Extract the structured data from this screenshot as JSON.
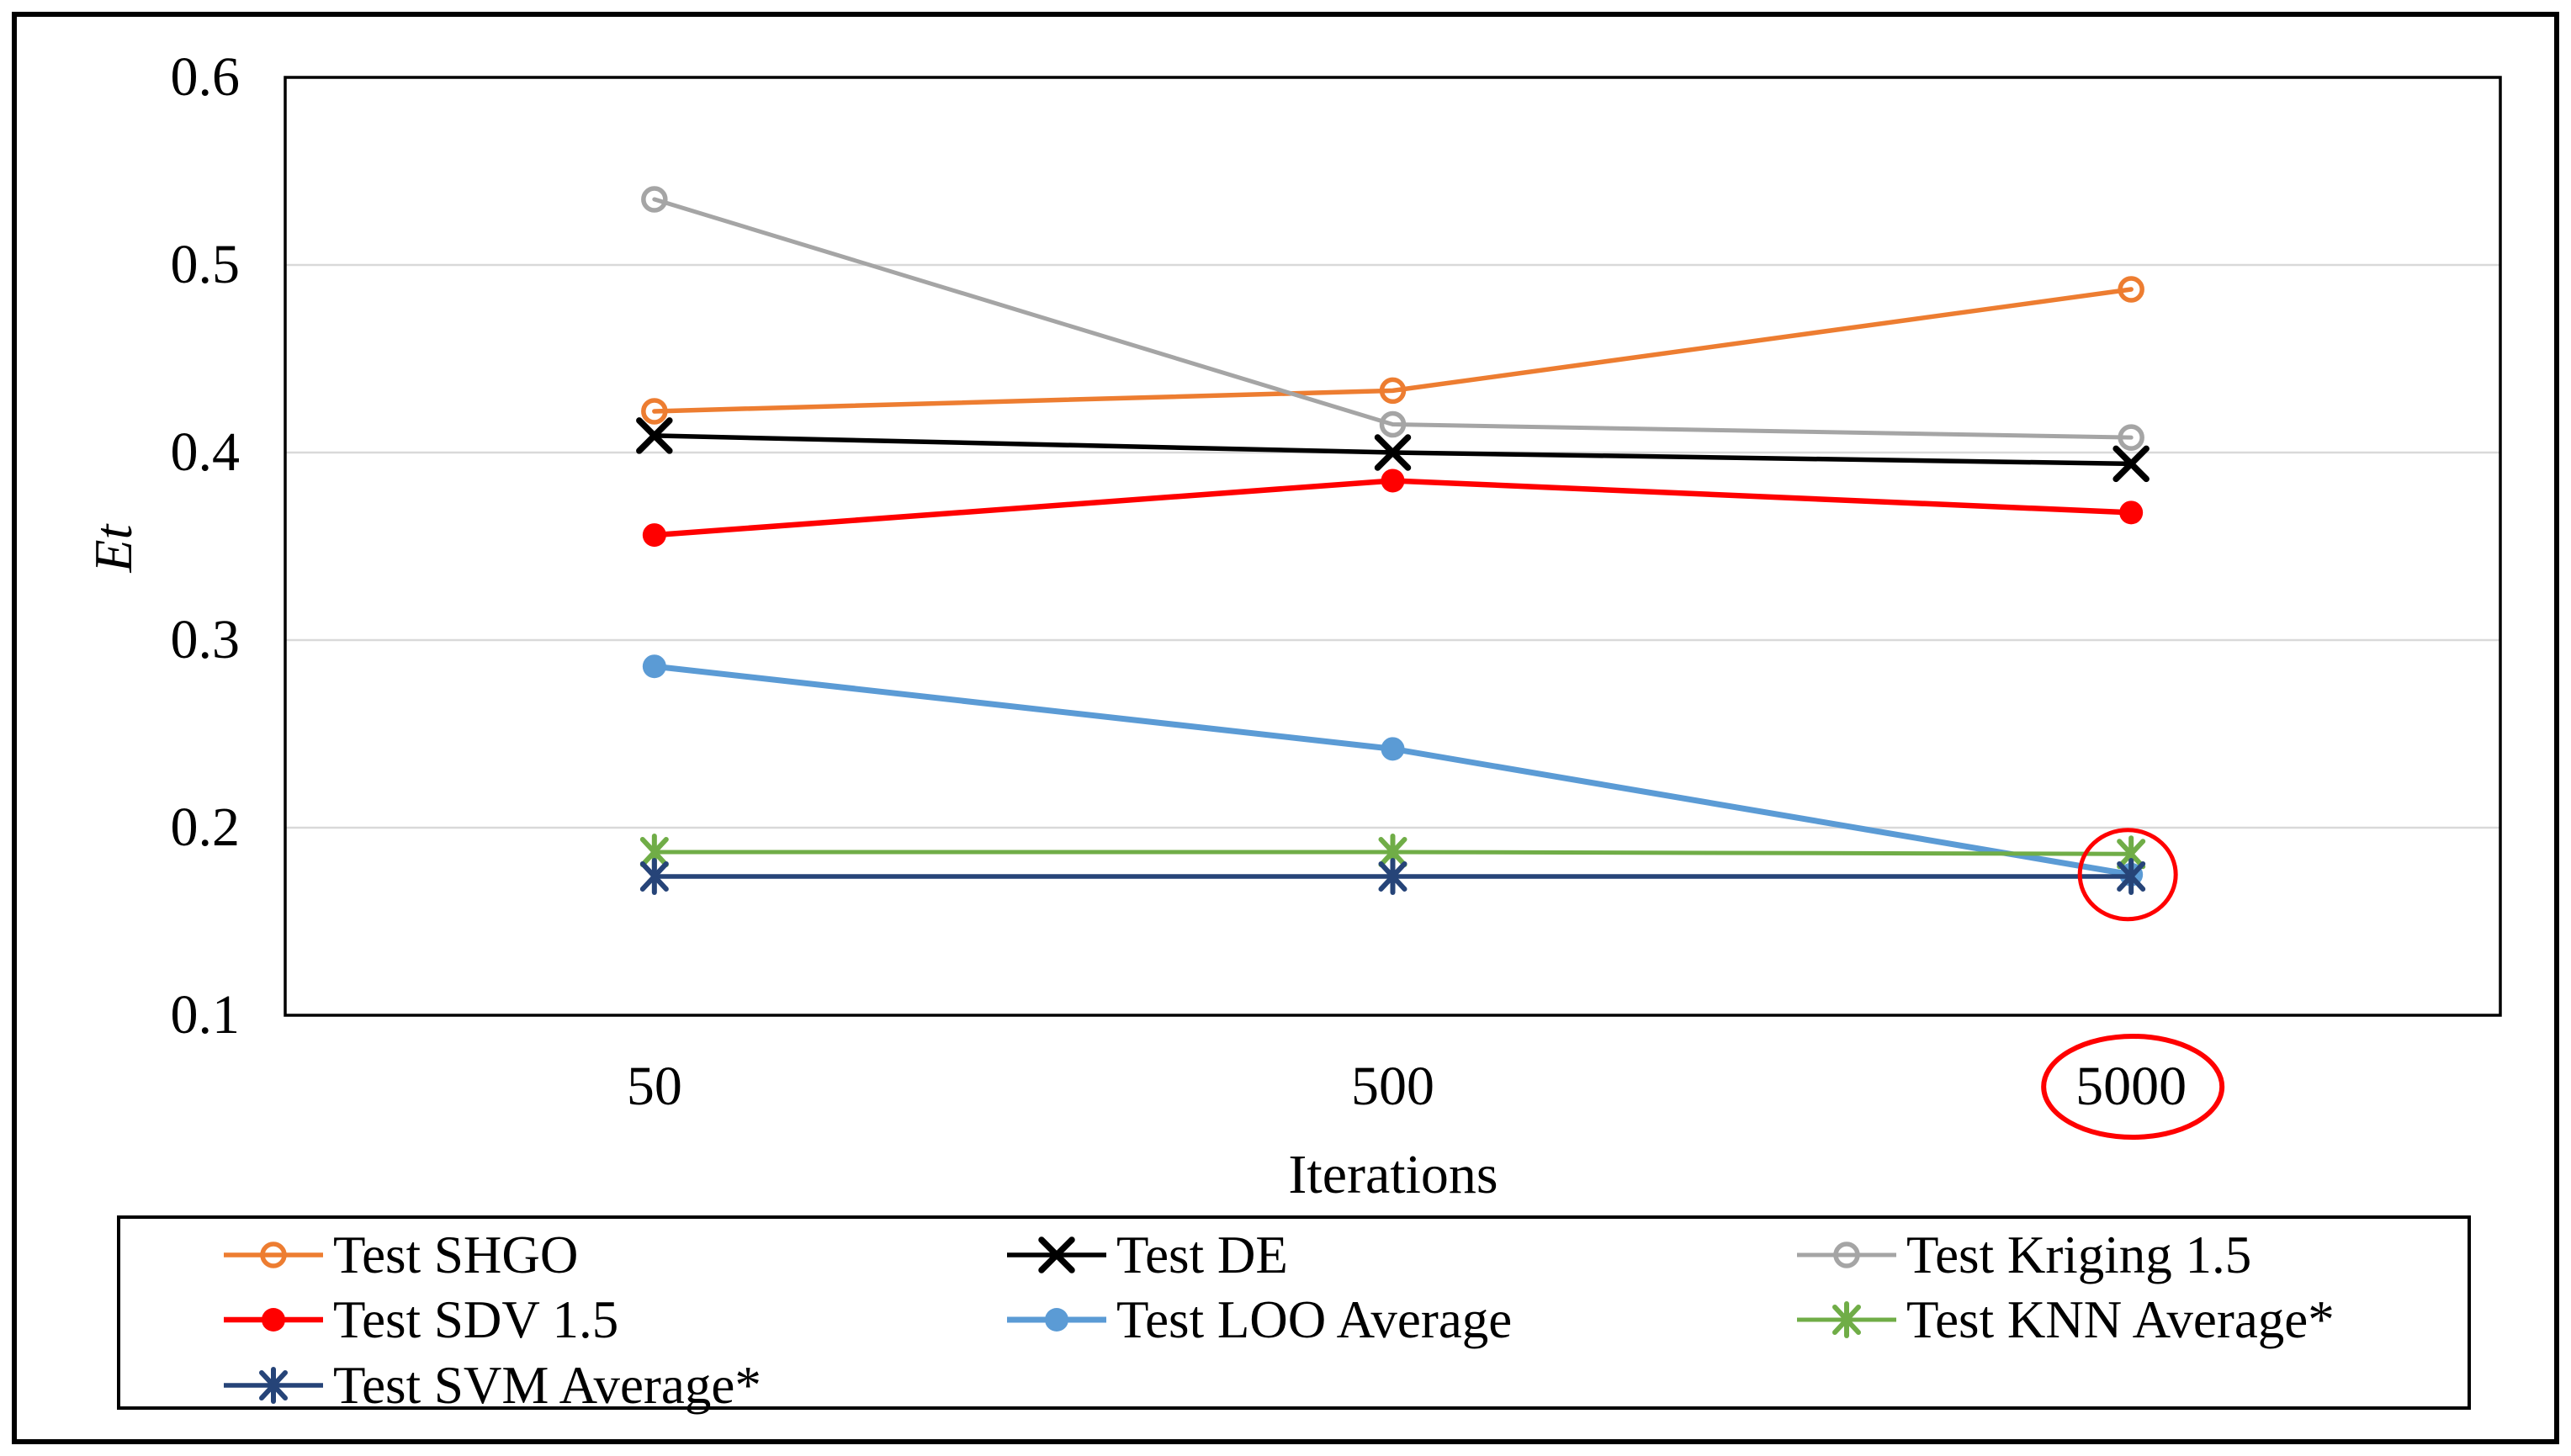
{
  "figure": {
    "background": "#ffffff",
    "border_color": "#000000",
    "plot_border_color": "#000000",
    "gridline_color": "#D9D9D9"
  },
  "chart_data": {
    "type": "line",
    "title": "",
    "xlabel": "Iterations",
    "ylabel": "Et",
    "categories": [
      "50",
      "500",
      "5000"
    ],
    "yticks": [
      "0.1",
      "0.2",
      "0.3",
      "0.4",
      "0.5",
      "0.6"
    ],
    "ylim": [
      0.1,
      0.6
    ],
    "grid": true,
    "legend_position": "bottom",
    "series": [
      {
        "name": "Test SHGO",
        "color": "#ED7D31",
        "marker": "circle-open",
        "line_width": 5.5,
        "values": [
          0.422,
          0.433,
          0.487
        ]
      },
      {
        "name": "Test DE",
        "color": "#000000",
        "marker": "x",
        "line_width": 5.5,
        "values": [
          0.409,
          0.4,
          0.394
        ]
      },
      {
        "name": "Test Kriging 1.5",
        "color": "#A5A5A5",
        "marker": "circle-open",
        "line_width": 5.0,
        "values": [
          0.535,
          0.415,
          0.408
        ]
      },
      {
        "name": "Test SDV 1.5",
        "color": "#FF0000",
        "marker": "circle-filled",
        "line_width": 6.5,
        "values": [
          0.356,
          0.385,
          0.368
        ]
      },
      {
        "name": "Test LOO Average",
        "color": "#5B9BD5",
        "marker": "circle-filled",
        "line_width": 7.0,
        "values": [
          0.286,
          0.242,
          0.175
        ]
      },
      {
        "name": "Test KNN Average*",
        "color": "#70AD47",
        "marker": "asterisk",
        "line_width": 5.0,
        "values": [
          0.187,
          0.187,
          0.186
        ]
      },
      {
        "name": "Test SVM Average*",
        "color": "#264478",
        "marker": "asterisk",
        "line_width": 5.5,
        "values": [
          0.174,
          0.174,
          0.174
        ]
      }
    ],
    "annotations": [
      {
        "id": "ellipse-data-cluster",
        "type": "ellipse",
        "color": "#FF0000",
        "note": "circles overlapping KNN/LOO/SVM points at x=5000"
      },
      {
        "id": "ellipse-xtick-5000",
        "type": "ellipse",
        "color": "#FF0000",
        "note": "circles the 5000 x-axis tick label"
      }
    ]
  }
}
